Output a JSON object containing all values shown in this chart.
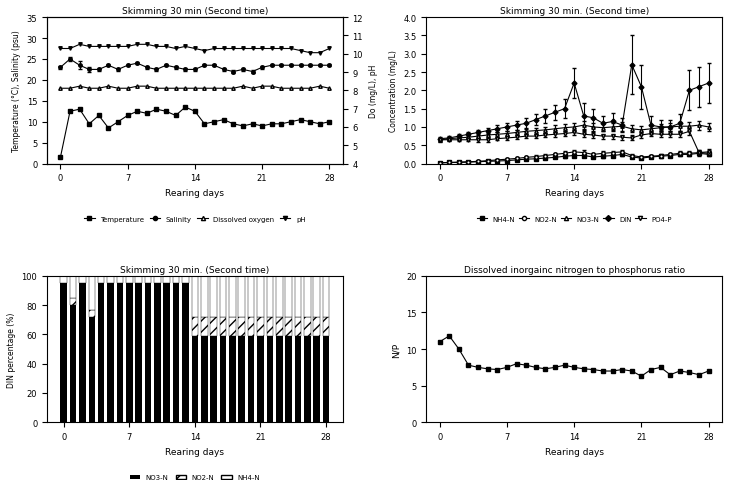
{
  "top_left": {
    "title": "Skimming 30 min (Second time)",
    "xlabel": "Rearing days",
    "ylabel_left": "Temperature (°C), Salinity (psu)",
    "ylabel_right": "Do (mg/L), pH",
    "days": [
      0,
      1,
      2,
      3,
      4,
      5,
      6,
      7,
      8,
      9,
      10,
      11,
      12,
      13,
      14,
      15,
      16,
      17,
      18,
      19,
      20,
      21,
      22,
      23,
      24,
      25,
      26,
      27,
      28
    ],
    "temperature": [
      1.5,
      12.5,
      13.0,
      9.5,
      11.5,
      8.5,
      10.0,
      11.5,
      12.5,
      12.0,
      13.0,
      12.5,
      11.5,
      13.5,
      12.5,
      9.5,
      10.0,
      10.5,
      9.5,
      9.0,
      9.5,
      9.0,
      9.5,
      9.5,
      10.0,
      10.5,
      10.0,
      9.5,
      10.0
    ],
    "salinity": [
      23.0,
      25.0,
      23.5,
      22.5,
      22.5,
      23.5,
      22.5,
      23.5,
      24.0,
      23.0,
      22.5,
      23.5,
      23.0,
      22.5,
      22.5,
      23.5,
      23.5,
      22.5,
      22.0,
      22.5,
      22.0,
      23.0,
      23.5,
      23.5,
      23.5,
      23.5,
      23.5,
      23.5,
      23.5
    ],
    "salinity_err": [
      0.3,
      0.5,
      1.0,
      0.5,
      0.3,
      0.3,
      0.3,
      0.3,
      0.3,
      0.3,
      0.3,
      0.3,
      0.3,
      0.3,
      0.3,
      0.3,
      0.3,
      0.3,
      0.3,
      0.3,
      0.3,
      0.3,
      0.3,
      0.3,
      0.3,
      0.3,
      0.3,
      0.3,
      0.3
    ],
    "pH_left": [
      27.5,
      27.5,
      28.5,
      28.0,
      28.0,
      28.0,
      28.0,
      28.0,
      28.5,
      28.5,
      28.0,
      28.0,
      27.5,
      28.0,
      27.5,
      27.0,
      27.5,
      27.5,
      27.5,
      27.5,
      27.5,
      27.5,
      27.5,
      27.5,
      27.5,
      27.0,
      26.5,
      26.5,
      27.5
    ],
    "do_left": [
      18.0,
      18.0,
      18.5,
      18.0,
      18.0,
      18.5,
      18.0,
      18.0,
      18.5,
      18.5,
      18.0,
      18.0,
      18.0,
      18.0,
      18.0,
      18.0,
      18.0,
      18.0,
      18.0,
      18.5,
      18.0,
      18.5,
      18.5,
      18.0,
      18.0,
      18.0,
      18.0,
      18.5,
      18.0
    ],
    "ylim_left": [
      0,
      35
    ],
    "ylim_right": [
      4.0,
      12.0
    ],
    "yticks_left": [
      0,
      5,
      10,
      15,
      20,
      25,
      30,
      35
    ],
    "yticks_right": [
      4.0,
      5.0,
      6.0,
      7.0,
      8.0,
      9.0,
      10.0,
      11.0,
      12.0
    ],
    "xticks": [
      0,
      7,
      14,
      21,
      28
    ]
  },
  "top_right": {
    "title": "Skimming 30 min. (Second time)",
    "xlabel": "Rearing days",
    "ylabel": "Concentration (mg/L)",
    "days": [
      0,
      1,
      2,
      3,
      4,
      5,
      6,
      7,
      8,
      9,
      10,
      11,
      12,
      13,
      14,
      15,
      16,
      17,
      18,
      19,
      20,
      21,
      22,
      23,
      24,
      25,
      26,
      27,
      28
    ],
    "NH4_N": [
      0.02,
      0.03,
      0.03,
      0.04,
      0.05,
      0.06,
      0.07,
      0.08,
      0.1,
      0.12,
      0.13,
      0.15,
      0.17,
      0.2,
      0.22,
      0.22,
      0.18,
      0.2,
      0.22,
      0.25,
      0.18,
      0.15,
      0.18,
      0.2,
      0.22,
      0.25,
      0.25,
      0.28,
      0.25
    ],
    "NH4_N_err": [
      0.01,
      0.01,
      0.01,
      0.01,
      0.02,
      0.02,
      0.02,
      0.02,
      0.02,
      0.03,
      0.03,
      0.03,
      0.03,
      0.04,
      0.04,
      0.04,
      0.03,
      0.04,
      0.04,
      0.04,
      0.03,
      0.03,
      0.03,
      0.04,
      0.04,
      0.04,
      0.04,
      0.05,
      0.04
    ],
    "NO2_N": [
      0.02,
      0.03,
      0.04,
      0.05,
      0.06,
      0.08,
      0.1,
      0.12,
      0.14,
      0.17,
      0.19,
      0.22,
      0.25,
      0.28,
      0.32,
      0.3,
      0.25,
      0.28,
      0.3,
      0.32,
      0.22,
      0.18,
      0.2,
      0.22,
      0.25,
      0.28,
      0.28,
      0.3,
      0.28
    ],
    "NO2_N_err": [
      0.01,
      0.01,
      0.01,
      0.02,
      0.02,
      0.02,
      0.03,
      0.03,
      0.03,
      0.04,
      0.04,
      0.04,
      0.05,
      0.05,
      0.06,
      0.06,
      0.05,
      0.05,
      0.05,
      0.06,
      0.04,
      0.04,
      0.04,
      0.04,
      0.05,
      0.05,
      0.05,
      0.06,
      0.05
    ],
    "NO3_N": [
      0.65,
      0.68,
      0.7,
      0.72,
      0.75,
      0.78,
      0.8,
      0.82,
      0.85,
      0.88,
      0.9,
      0.92,
      0.95,
      0.98,
      1.0,
      1.05,
      1.0,
      0.98,
      1.0,
      1.02,
      0.95,
      0.92,
      0.95,
      0.98,
      1.0,
      1.02,
      1.02,
      1.05,
      1.0
    ],
    "NO3_N_err": [
      0.05,
      0.05,
      0.05,
      0.06,
      0.06,
      0.06,
      0.07,
      0.07,
      0.07,
      0.08,
      0.08,
      0.08,
      0.09,
      0.1,
      0.1,
      0.12,
      0.1,
      0.1,
      0.1,
      0.12,
      0.1,
      0.1,
      0.1,
      0.1,
      0.1,
      0.12,
      0.12,
      0.12,
      0.1
    ],
    "DIN": [
      0.68,
      0.7,
      0.75,
      0.8,
      0.85,
      0.9,
      0.95,
      1.0,
      1.05,
      1.1,
      1.2,
      1.3,
      1.4,
      1.5,
      2.2,
      1.3,
      1.25,
      1.1,
      1.15,
      1.05,
      2.7,
      2.1,
      1.05,
      1.0,
      1.0,
      1.1,
      2.0,
      2.1,
      2.2
    ],
    "DIN_err": [
      0.05,
      0.05,
      0.05,
      0.06,
      0.08,
      0.08,
      0.1,
      0.1,
      0.12,
      0.15,
      0.15,
      0.18,
      0.2,
      0.25,
      0.4,
      0.35,
      0.25,
      0.2,
      0.22,
      0.2,
      0.8,
      0.6,
      0.25,
      0.2,
      0.2,
      0.25,
      0.55,
      0.55,
      0.55
    ],
    "PO4_P": [
      0.65,
      0.65,
      0.65,
      0.65,
      0.65,
      0.65,
      0.68,
      0.7,
      0.72,
      0.75,
      0.75,
      0.78,
      0.8,
      0.82,
      0.85,
      0.8,
      0.78,
      0.75,
      0.75,
      0.72,
      0.7,
      0.78,
      0.82,
      0.8,
      0.8,
      0.8,
      0.88,
      0.3,
      0.32
    ],
    "PO4_P_err": [
      0.04,
      0.04,
      0.04,
      0.04,
      0.05,
      0.05,
      0.05,
      0.05,
      0.05,
      0.06,
      0.06,
      0.06,
      0.07,
      0.08,
      0.08,
      0.08,
      0.07,
      0.07,
      0.07,
      0.07,
      0.07,
      0.08,
      0.08,
      0.08,
      0.08,
      0.08,
      0.09,
      0.08,
      0.08
    ],
    "ylim": [
      0,
      4.0
    ],
    "yticks": [
      0.0,
      0.5,
      1.0,
      1.5,
      2.0,
      2.5,
      3.0,
      3.5,
      4.0
    ],
    "xticks": [
      0,
      7,
      14,
      21,
      28
    ]
  },
  "bottom_left": {
    "title": "Skimming 30 min. (Second time)",
    "xlabel": "Rearing days",
    "ylabel": "DIN percentage (%)",
    "days": [
      0,
      1,
      2,
      3,
      4,
      5,
      6,
      7,
      8,
      9,
      10,
      11,
      12,
      13,
      14,
      15,
      16,
      17,
      18,
      19,
      20,
      21,
      22,
      23,
      24,
      25,
      26,
      27,
      28
    ],
    "NO3_pct": [
      95,
      80,
      95,
      72,
      95,
      95,
      95,
      95,
      95,
      95,
      95,
      95,
      95,
      95,
      59,
      59,
      59,
      59,
      59,
      59,
      59,
      59,
      59,
      59,
      59,
      59,
      59,
      59,
      59
    ],
    "NO2_pct": [
      0,
      5,
      0,
      5,
      0,
      0,
      0,
      0,
      0,
      0,
      0,
      0,
      0,
      0,
      13,
      13,
      13,
      13,
      13,
      13,
      13,
      13,
      13,
      13,
      13,
      13,
      13,
      13,
      13
    ],
    "NH4_pct": [
      5,
      15,
      5,
      23,
      5,
      5,
      5,
      5,
      5,
      5,
      5,
      5,
      5,
      5,
      28,
      28,
      28,
      28,
      28,
      28,
      28,
      28,
      28,
      28,
      28,
      28,
      28,
      28,
      28
    ],
    "ylim": [
      0,
      100
    ],
    "yticks": [
      0,
      20,
      40,
      60,
      80,
      100
    ],
    "xticks": [
      0,
      7,
      14,
      21,
      28
    ]
  },
  "bottom_right": {
    "title": "Dissolved inorgainc nitrogen to phosphorus ratio",
    "xlabel": "Rearing days",
    "ylabel": "N/P",
    "days": [
      0,
      1,
      2,
      3,
      4,
      5,
      6,
      7,
      8,
      9,
      10,
      11,
      12,
      13,
      14,
      15,
      16,
      17,
      18,
      19,
      20,
      21,
      22,
      23,
      24,
      25,
      26,
      27,
      28
    ],
    "NP": [
      11.0,
      11.8,
      10.0,
      7.8,
      7.5,
      7.3,
      7.2,
      7.5,
      8.0,
      7.8,
      7.5,
      7.3,
      7.5,
      7.8,
      7.5,
      7.3,
      7.2,
      7.0,
      7.0,
      7.2,
      7.0,
      6.3,
      7.2,
      7.5,
      6.5,
      7.0,
      6.8,
      6.5,
      7.0
    ],
    "ylim": [
      0,
      20
    ],
    "yticks": [
      0,
      5,
      10,
      15,
      20
    ],
    "xticks": [
      0,
      7,
      14,
      21,
      28
    ]
  }
}
